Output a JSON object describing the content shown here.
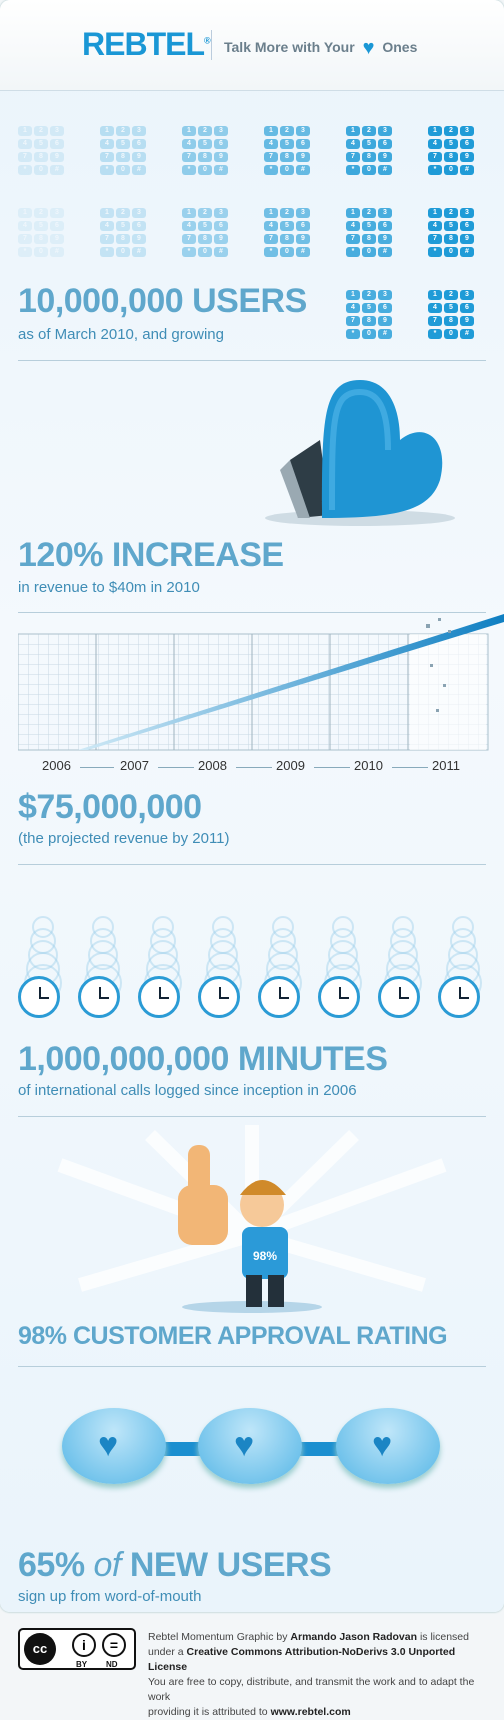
{
  "header": {
    "logo": "REBTEL",
    "logo_tm": "®",
    "tagline_pre": "Talk More with Your",
    "tagline_post": "Ones"
  },
  "keypad_keys": [
    "1",
    "2",
    "3",
    "4",
    "5",
    "6",
    "7",
    "8",
    "9",
    "*",
    "0",
    "#"
  ],
  "stats": [
    {
      "headline": "10,000,000 USERS",
      "sub": "as of March 2010, and growing"
    },
    {
      "headline": "120% INCREASE",
      "sub": "in revenue to $40m in 2010"
    },
    {
      "headline": "$75,000,000",
      "sub": "(the projected revenue by 2011)"
    },
    {
      "headline": "1,000,000,000 MINUTES",
      "sub": "of international calls logged since inception in 2006"
    },
    {
      "headline": "98% CUSTOMER APPROVAL RATING",
      "sub": ""
    },
    {
      "headline_pct": "65%",
      "headline_of": "of",
      "headline_rest": "NEW USERS",
      "sub": "sign up from word-of-mouth"
    }
  ],
  "chart": {
    "years": [
      "2006",
      "2007",
      "2008",
      "2009",
      "2010",
      "2011"
    ]
  },
  "shirt_label": "98%",
  "colors": {
    "accent": "#1a97d5",
    "headline": "#5fa7cc"
  },
  "footer": {
    "cc_by": "BY",
    "cc_nd": "ND",
    "line1_pre": "Rebtel Momentum Graphic by",
    "author": "Armando Jason Radovan",
    "line1_post": "is licensed",
    "line2_pre": "under a",
    "license": "Creative Commons Attribution-NoDerivs 3.0 Unported License",
    "line3": "You are free to copy, distribute, and transmit the work and to adapt the work",
    "line4_pre": "providing it is attributed to",
    "site": "www.rebtel.com"
  }
}
